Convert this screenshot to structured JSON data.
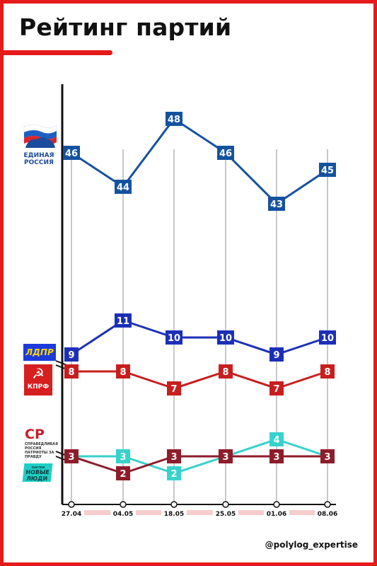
{
  "title": "Рейтинг партий",
  "handle": "@polylog_expertise",
  "colors": {
    "frame": "#e51b1b",
    "gridline": "#c8c8c8",
    "axis": "#111111",
    "er": "#1452a0",
    "ldpr": "#1c2fb8",
    "kprf": "#c81e1e",
    "sr": "#8e1c2a",
    "nl": "#38d2cc",
    "date_strip": "#f7cccc"
  },
  "logos": {
    "er": {
      "icon": "bear-flag-icon",
      "lines": [
        "ЕДИНАЯ",
        "РОССИЯ"
      ]
    },
    "ldpr": {
      "text": "ЛДПР"
    },
    "kprf": {
      "icon": "hammer-sickle-icon",
      "text": "КПРФ"
    },
    "sr": {
      "mark": "СР",
      "sub": "СПРАВЕДЛИВАЯ РОССИЯ ПАТРИОТЫ ЗА ПРАВДУ"
    },
    "nl": {
      "pre": "ПАРТИЯ",
      "lines": [
        "НОВЫЕ",
        "ЛЮДИ"
      ]
    }
  },
  "chart_data": {
    "type": "line",
    "title": "Рейтинг партий",
    "x": [
      "27.04",
      "04.05",
      "18.05",
      "25.05",
      "01.06",
      "08.06"
    ],
    "axis_break": true,
    "data_labels": true,
    "series": [
      {
        "key": "er",
        "values": [
          46,
          44,
          48,
          46,
          43,
          45
        ]
      },
      {
        "key": "ldpr",
        "values": [
          9,
          11,
          10,
          10,
          9,
          10
        ]
      },
      {
        "key": "kprf",
        "values": [
          8,
          8,
          7,
          8,
          7,
          8
        ]
      },
      {
        "key": "sr",
        "values": [
          3,
          2,
          3,
          3,
          3,
          3
        ]
      },
      {
        "key": "nl",
        "values": [
          3,
          3,
          2,
          3,
          4,
          3
        ]
      }
    ]
  }
}
